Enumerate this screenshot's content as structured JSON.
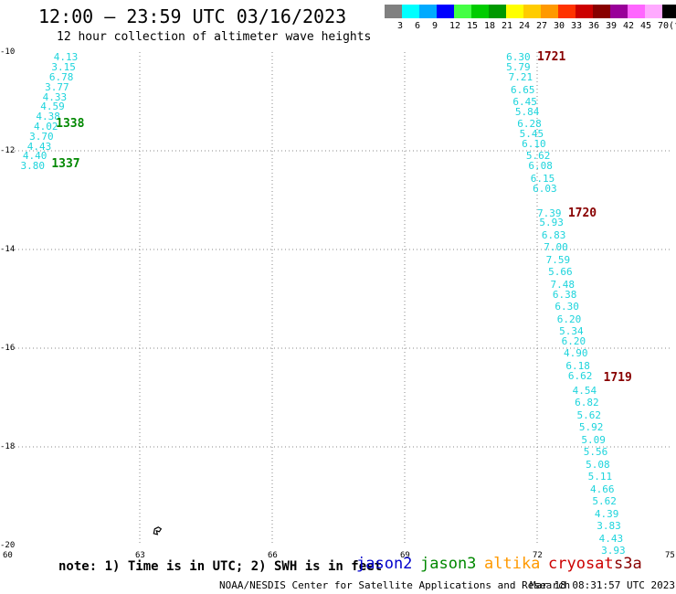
{
  "header": {
    "title": "12:00 — 23:59 UTC 03/16/2023",
    "subtitle": "12 hour collection of altimeter wave heights"
  },
  "color_scale": {
    "colors": [
      "#808080",
      "#00ffff",
      "#00aaff",
      "#0000ff",
      "#44ff44",
      "#00cc00",
      "#009900",
      "#ffff00",
      "#ffcc00",
      "#ff9900",
      "#ff3300",
      "#cc0000",
      "#880000",
      "#990099",
      "#ff66ff",
      "#ffaaff",
      "#000000"
    ],
    "labels": [
      "3",
      "6",
      "9",
      "12",
      "15",
      "18",
      "21",
      "24",
      "27",
      "30",
      "33",
      "36",
      "39",
      "42",
      "45",
      "70"
    ],
    "unit": "(ft)"
  },
  "map": {
    "x_ticks": [
      "60",
      "63",
      "66",
      "69",
      "72",
      "75"
    ],
    "y_ticks": [
      "-10",
      "-12",
      "-14",
      "-16",
      "-18",
      "-20"
    ],
    "lon_range": [
      60,
      75
    ],
    "lat_range": [
      -20,
      -10
    ],
    "gridline_color": "#888888"
  },
  "tracks": [
    {
      "id": "left-track",
      "time_labels": [
        {
          "text": "1338",
          "color": "#008800",
          "lon": 61.1,
          "lat": -11.45
        },
        {
          "text": "1337",
          "color": "#008800",
          "lon": 61.0,
          "lat": -12.25
        }
      ],
      "points": [
        {
          "v": "4.13",
          "lon": 61.05,
          "lat": -10.1
        },
        {
          "v": "3.15",
          "lon": 61.0,
          "lat": -10.3
        },
        {
          "v": "6.78",
          "lon": 60.95,
          "lat": -10.5
        },
        {
          "v": "3.77",
          "lon": 60.85,
          "lat": -10.7
        },
        {
          "v": "4.33",
          "lon": 60.8,
          "lat": -10.9
        },
        {
          "v": "4.59",
          "lon": 60.75,
          "lat": -11.1
        },
        {
          "v": "4.38",
          "lon": 60.65,
          "lat": -11.3
        },
        {
          "v": "4.02",
          "lon": 60.6,
          "lat": -11.5
        },
        {
          "v": "3.70",
          "lon": 60.5,
          "lat": -11.7
        },
        {
          "v": "4.43",
          "lon": 60.45,
          "lat": -11.9
        },
        {
          "v": "4.40",
          "lon": 60.35,
          "lat": -12.1
        },
        {
          "v": "3.80",
          "lon": 60.3,
          "lat": -12.3
        }
      ]
    },
    {
      "id": "right-track",
      "time_labels": [
        {
          "text": "1721",
          "color": "#880000",
          "lon": 72.0,
          "lat": -10.1
        },
        {
          "text": "1720",
          "color": "#880000",
          "lon": 72.7,
          "lat": -13.25
        },
        {
          "text": "1719",
          "color": "#880000",
          "lon": 73.5,
          "lat": -16.6
        }
      ],
      "points": [
        {
          "v": "6.30",
          "lon": 71.3,
          "lat": -10.1
        },
        {
          "v": "5.79",
          "lon": 71.3,
          "lat": -10.3
        },
        {
          "v": "7.21",
          "lon": 71.35,
          "lat": -10.5
        },
        {
          "v": "6.65",
          "lon": 71.4,
          "lat": -10.75
        },
        {
          "v": "6.45",
          "lon": 71.45,
          "lat": -11.0
        },
        {
          "v": "5.84",
          "lon": 71.5,
          "lat": -11.2
        },
        {
          "v": "6.28",
          "lon": 71.55,
          "lat": -11.45
        },
        {
          "v": "5.45",
          "lon": 71.6,
          "lat": -11.65
        },
        {
          "v": "6.10",
          "lon": 71.65,
          "lat": -11.85
        },
        {
          "v": "5.62",
          "lon": 71.75,
          "lat": -12.1
        },
        {
          "v": "6.08",
          "lon": 71.8,
          "lat": -12.3
        },
        {
          "v": "6.15",
          "lon": 71.85,
          "lat": -12.55
        },
        {
          "v": "6.03",
          "lon": 71.9,
          "lat": -12.75
        },
        {
          "v": "7.39",
          "lon": 72.0,
          "lat": -13.25
        },
        {
          "v": "5.93",
          "lon": 72.05,
          "lat": -13.45
        },
        {
          "v": "6.83",
          "lon": 72.1,
          "lat": -13.7
        },
        {
          "v": "7.00",
          "lon": 72.15,
          "lat": -13.95
        },
        {
          "v": "7.59",
          "lon": 72.2,
          "lat": -14.2
        },
        {
          "v": "5.66",
          "lon": 72.25,
          "lat": -14.45
        },
        {
          "v": "7.48",
          "lon": 72.3,
          "lat": -14.7
        },
        {
          "v": "6.38",
          "lon": 72.35,
          "lat": -14.9
        },
        {
          "v": "6.30",
          "lon": 72.4,
          "lat": -15.15
        },
        {
          "v": "6.20",
          "lon": 72.45,
          "lat": -15.4
        },
        {
          "v": "5.34",
          "lon": 72.5,
          "lat": -15.65
        },
        {
          "v": "6.20",
          "lon": 72.55,
          "lat": -15.85
        },
        {
          "v": "4.90",
          "lon": 72.6,
          "lat": -16.1
        },
        {
          "v": "6.18",
          "lon": 72.65,
          "lat": -16.35
        },
        {
          "v": "6.62",
          "lon": 72.7,
          "lat": -16.55
        },
        {
          "v": "4.54",
          "lon": 72.8,
          "lat": -16.85
        },
        {
          "v": "6.82",
          "lon": 72.85,
          "lat": -17.1
        },
        {
          "v": "5.62",
          "lon": 72.9,
          "lat": -17.35
        },
        {
          "v": "5.92",
          "lon": 72.95,
          "lat": -17.6
        },
        {
          "v": "5.09",
          "lon": 73.0,
          "lat": -17.85
        },
        {
          "v": "5.56",
          "lon": 73.05,
          "lat": -18.1
        },
        {
          "v": "5.08",
          "lon": 73.1,
          "lat": -18.35
        },
        {
          "v": "5.11",
          "lon": 73.15,
          "lat": -18.6
        },
        {
          "v": "4.66",
          "lon": 73.2,
          "lat": -18.85
        },
        {
          "v": "5.62",
          "lon": 73.25,
          "lat": -19.1
        },
        {
          "v": "4.39",
          "lon": 73.3,
          "lat": -19.35
        },
        {
          "v": "3.83",
          "lon": 73.35,
          "lat": -19.6
        },
        {
          "v": "4.43",
          "lon": 73.4,
          "lat": -19.85
        },
        {
          "v": "3.93",
          "lon": 73.45,
          "lat": -20.1
        }
      ]
    }
  ],
  "island": {
    "lon": 63.4,
    "lat": -19.7,
    "color": "#000000"
  },
  "footer": {
    "note": "note: 1) Time is in UTC; 2) SWH is in feet",
    "satellites": [
      {
        "name": "jason2",
        "color": "#0000cc"
      },
      {
        "name": "jason3",
        "color": "#008800"
      },
      {
        "name": "altika",
        "color": "#ff9900"
      },
      {
        "name": "cryosat",
        "color": "#cc0000"
      },
      {
        "name": "s3a",
        "color": "#880000"
      }
    ],
    "credit": "NOAA/NESDIS Center for Satellite Applications and Research",
    "timestamp": "Mar 18 08:31:57 UTC 2023"
  }
}
